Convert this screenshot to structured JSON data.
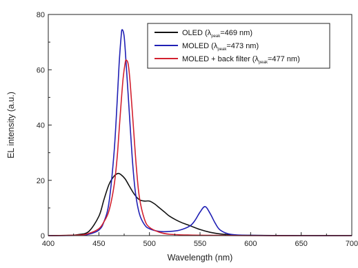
{
  "chart_data": {
    "type": "line",
    "xlabel": "Wavelength (nm)",
    "ylabel": "EL intensity (a.u.)",
    "xlim": [
      400,
      700
    ],
    "ylim": [
      0,
      80
    ],
    "xticks": [
      400,
      450,
      500,
      550,
      600,
      650,
      700
    ],
    "yticks": [
      0,
      20,
      40,
      60,
      80
    ],
    "grid": false,
    "legend_placement": "top-right",
    "series": [
      {
        "name": "OLED",
        "legend": {
          "prefix": "OLED (λ",
          "sub": "peak",
          "suffix": "=469 nm)"
        },
        "color": "#111111",
        "x": [
          400,
          420,
          430,
          440,
          450,
          455,
          460,
          465,
          469,
          472,
          476,
          480,
          485,
          490,
          495,
          500,
          505,
          510,
          515,
          520,
          530,
          540,
          550,
          560,
          570,
          580,
          600,
          650,
          700
        ],
        "y": [
          0,
          0.1,
          0.4,
          1.5,
          7,
          13,
          18.5,
          21.5,
          22.5,
          22,
          20.5,
          18,
          15,
          13,
          12.5,
          12.5,
          11.5,
          10,
          8.5,
          7,
          5,
          3.6,
          2.2,
          1.2,
          0.6,
          0.3,
          0.1,
          0,
          0
        ]
      },
      {
        "name": "MOLED",
        "legend": {
          "prefix": "MOLED (λ",
          "sub": "peak",
          "suffix": "=473 nm)"
        },
        "color": "#1f1fb4",
        "x": [
          400,
          430,
          440,
          450,
          455,
          460,
          465,
          468,
          470,
          472,
          473,
          475,
          477,
          480,
          483,
          486,
          490,
          495,
          500,
          510,
          520,
          530,
          540,
          545,
          550,
          555,
          560,
          565,
          570,
          580,
          600,
          650,
          700
        ],
        "y": [
          0,
          0.1,
          0.5,
          2,
          5,
          12,
          30,
          48,
          62,
          72,
          74.5,
          72,
          62,
          45,
          28,
          16,
          8,
          4,
          2.5,
          1.5,
          1.5,
          2,
          3.5,
          5.5,
          8.5,
          10.5,
          8,
          4.5,
          2,
          0.5,
          0.1,
          0,
          0
        ]
      },
      {
        "name": "MOLED + back filter",
        "legend": {
          "prefix": "MOLED + back filter  (λ",
          "sub": "peak",
          "suffix": "=477 nm)"
        },
        "color": "#d2202e",
        "x": [
          400,
          430,
          440,
          450,
          455,
          460,
          465,
          468,
          470,
          472,
          474,
          476,
          477,
          479,
          481,
          484,
          487,
          490,
          495,
          500,
          510,
          520,
          540,
          560,
          600,
          650,
          700
        ],
        "y": [
          0,
          0.2,
          0.8,
          2.5,
          5,
          9,
          18,
          28,
          38,
          48,
          57,
          62.5,
          63.5,
          62,
          55,
          40,
          25,
          14,
          6,
          3,
          1.2,
          0.5,
          0.2,
          0.1,
          0,
          0,
          0
        ]
      }
    ]
  }
}
